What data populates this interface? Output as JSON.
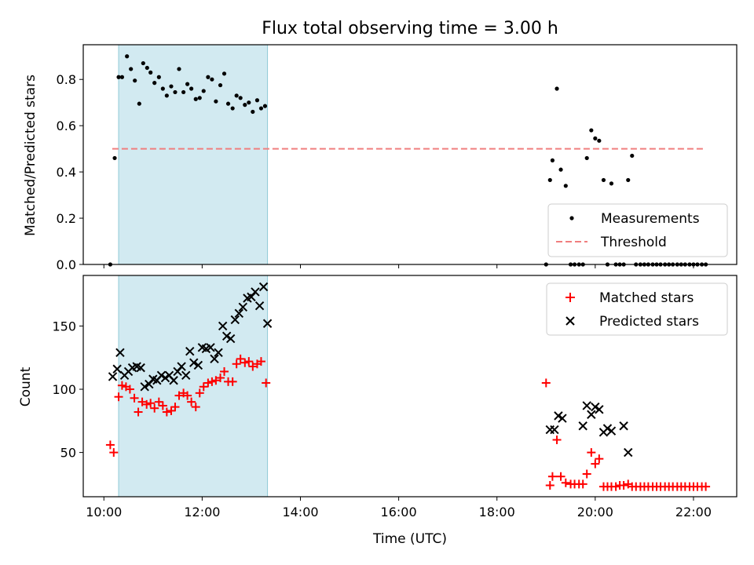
{
  "title": "Flux total observing time = 3.00 h",
  "colors": {
    "shade": "#add8e6",
    "threshold": "#f07f7f",
    "matched": "#ff0000",
    "predicted": "#000000",
    "measurement": "#000000"
  },
  "chart_data": [
    {
      "type": "scatter",
      "title": "Flux total observing time = 3.00 h",
      "xlabel": "",
      "ylabel": "Matched/Predicted stars",
      "xlim": [
        9.58,
        22.88
      ],
      "ylim": [
        0,
        0.95
      ],
      "x_ticks": [
        "10:00",
        "12:00",
        "14:00",
        "16:00",
        "18:00",
        "20:00",
        "22:00"
      ],
      "y_ticks": [
        "0.0",
        "0.2",
        "0.4",
        "0.6",
        "0.8"
      ],
      "shaded_span": [
        10.3,
        13.33
      ],
      "threshold": {
        "y": 0.5,
        "x_range": [
          10.17,
          22.25
        ]
      },
      "legend": {
        "position": "lower right",
        "entries": [
          "Measurements",
          "Threshold"
        ]
      },
      "series": [
        {
          "name": "Measurements",
          "x": [
            10.13,
            10.22,
            10.3,
            10.37,
            10.47,
            10.55,
            10.63,
            10.72,
            10.8,
            10.88,
            10.95,
            11.03,
            11.12,
            11.2,
            11.28,
            11.37,
            11.45,
            11.53,
            11.62,
            11.7,
            11.78,
            11.87,
            11.95,
            12.03,
            12.12,
            12.2,
            12.28,
            12.37,
            12.45,
            12.53,
            12.62,
            12.7,
            12.78,
            12.87,
            12.95,
            13.03,
            13.12,
            13.2,
            13.28,
            19.0,
            19.08,
            19.13,
            19.22,
            19.3,
            19.4,
            19.5,
            19.58,
            19.67,
            19.75,
            19.83,
            19.92,
            20.0,
            20.08,
            20.17,
            20.25,
            20.33,
            20.42,
            20.5,
            20.58,
            20.67,
            20.75,
            20.83,
            20.92,
            21.0,
            21.08,
            21.17,
            21.25,
            21.33,
            21.42,
            21.5,
            21.58,
            21.67,
            21.75,
            21.83,
            21.92,
            22.0,
            22.08,
            22.17,
            22.25
          ],
          "y": [
            0.0,
            0.46,
            0.81,
            0.81,
            0.9,
            0.845,
            0.795,
            0.695,
            0.87,
            0.85,
            0.83,
            0.785,
            0.81,
            0.76,
            0.73,
            0.77,
            0.745,
            0.845,
            0.745,
            0.78,
            0.76,
            0.715,
            0.72,
            0.75,
            0.81,
            0.8,
            0.705,
            0.775,
            0.825,
            0.695,
            0.675,
            0.73,
            0.72,
            0.69,
            0.7,
            0.66,
            0.71,
            0.675,
            0.685,
            0.0,
            0.365,
            0.45,
            0.76,
            0.41,
            0.34,
            0.0,
            0.0,
            0.0,
            0.0,
            0.46,
            0.58,
            0.545,
            0.535,
            0.365,
            0.0,
            0.35,
            0.0,
            0.0,
            0.0,
            0.365,
            0.47,
            0.0,
            0.0,
            0.0,
            0.0,
            0.0,
            0.0,
            0.0,
            0.0,
            0.0,
            0.0,
            0.0,
            0.0,
            0.0,
            0.0,
            0.0,
            0.0,
            0.0,
            0.0
          ]
        }
      ]
    },
    {
      "type": "scatter",
      "xlabel": "Time (UTC)",
      "ylabel": "Count",
      "xlim": [
        9.58,
        22.88
      ],
      "ylim": [
        15,
        190
      ],
      "x_ticks": [
        "10:00",
        "12:00",
        "14:00",
        "16:00",
        "18:00",
        "20:00",
        "22:00"
      ],
      "y_ticks": [
        "50",
        "100",
        "150"
      ],
      "shaded_span": [
        10.3,
        13.33
      ],
      "legend": {
        "position": "upper right",
        "entries": [
          "Matched stars",
          "Predicted stars"
        ]
      },
      "series": [
        {
          "name": "Matched stars",
          "x": [
            10.13,
            10.2,
            10.3,
            10.37,
            10.45,
            10.53,
            10.62,
            10.7,
            10.78,
            10.87,
            10.95,
            11.03,
            11.12,
            11.2,
            11.28,
            11.37,
            11.45,
            11.53,
            11.62,
            11.7,
            11.78,
            11.87,
            11.95,
            12.03,
            12.12,
            12.2,
            12.28,
            12.37,
            12.45,
            12.53,
            12.62,
            12.7,
            12.78,
            12.87,
            12.95,
            13.03,
            13.12,
            13.2,
            13.3,
            19.0,
            19.08,
            19.13,
            19.22,
            19.3,
            19.4,
            19.5,
            19.58,
            19.67,
            19.75,
            19.83,
            19.92,
            20.0,
            20.08,
            20.17,
            20.25,
            20.33,
            20.42,
            20.5,
            20.58,
            20.67,
            20.75,
            20.83,
            20.92,
            21.0,
            21.08,
            21.17,
            21.25,
            21.33,
            21.42,
            21.5,
            21.58,
            21.67,
            21.75,
            21.83,
            21.92,
            22.0,
            22.08,
            22.17,
            22.25
          ],
          "y": [
            56,
            50,
            94,
            103,
            102,
            100,
            93,
            82,
            90,
            88,
            89,
            85,
            90,
            87,
            82,
            83,
            86,
            95,
            97,
            95,
            90,
            86,
            97,
            102,
            105,
            106,
            107,
            109,
            114,
            106,
            106,
            120,
            124,
            121,
            122,
            118,
            120,
            122,
            105,
            105,
            24,
            31,
            60,
            31,
            26,
            25,
            25,
            25,
            25,
            33,
            50,
            41,
            45,
            23,
            23,
            23,
            23,
            24,
            24,
            25,
            23,
            23,
            23,
            23,
            23,
            23,
            23,
            23,
            23,
            23,
            23,
            23,
            23,
            23,
            23,
            23,
            23,
            23,
            23
          ]
        },
        {
          "name": "Predicted stars",
          "x": [
            10.18,
            10.27,
            10.33,
            10.42,
            10.5,
            10.58,
            10.67,
            10.75,
            10.83,
            10.92,
            11.0,
            11.08,
            11.17,
            11.25,
            11.33,
            11.42,
            11.5,
            11.58,
            11.67,
            11.75,
            11.83,
            11.92,
            12.0,
            12.08,
            12.17,
            12.25,
            12.33,
            12.42,
            12.5,
            12.58,
            12.67,
            12.75,
            12.83,
            12.92,
            13.0,
            13.08,
            13.17,
            13.25,
            13.33,
            19.08,
            19.17,
            19.25,
            19.33,
            19.75,
            19.83,
            19.92,
            20.0,
            20.08,
            20.17,
            20.25,
            20.33,
            20.58,
            20.67
          ],
          "y": [
            110,
            116,
            129,
            111,
            114,
            117,
            118,
            117,
            102,
            104,
            108,
            107,
            111,
            109,
            111,
            107,
            114,
            118,
            111,
            130,
            121,
            119,
            133,
            132,
            133,
            124,
            129,
            150,
            142,
            140,
            155,
            160,
            165,
            172,
            173,
            177,
            166,
            181,
            152,
            68,
            68,
            79,
            77,
            71,
            87,
            80,
            86,
            84,
            66,
            69,
            67,
            71,
            50
          ]
        }
      ]
    }
  ]
}
